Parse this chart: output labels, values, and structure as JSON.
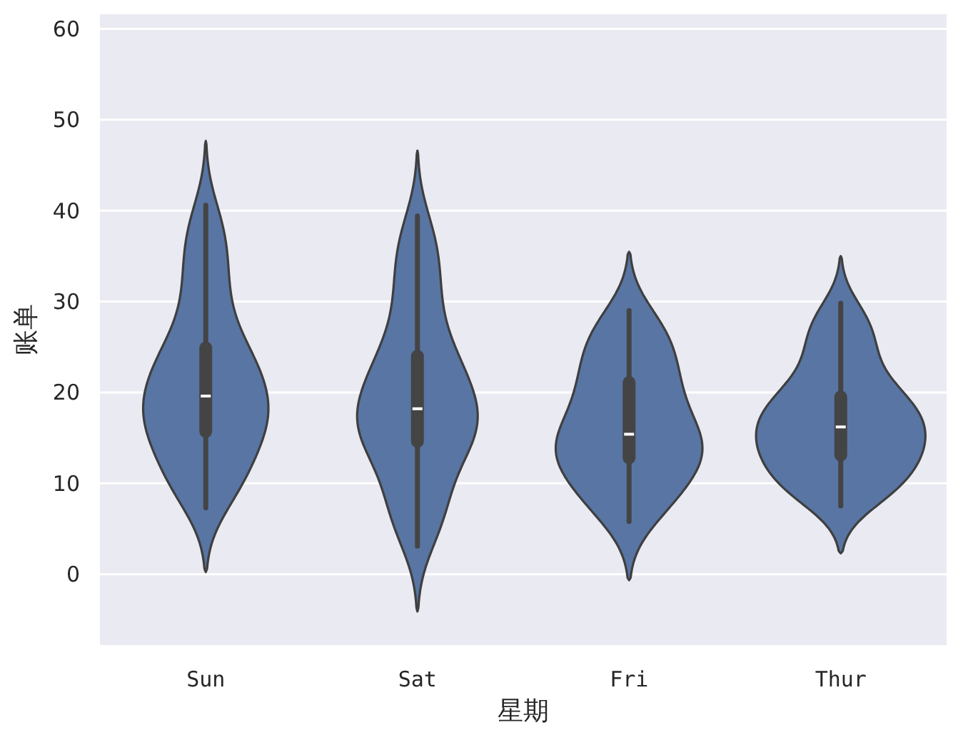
{
  "chart_data": {
    "type": "box",
    "xlabel": "星期",
    "ylabel": "账单",
    "categories": [
      "Sun",
      "Sat",
      "Fri",
      "Thur"
    ],
    "color": "#5875a4",
    "ylim": [
      -7.8,
      61.6
    ],
    "yticks": [
      0,
      10,
      20,
      30,
      40,
      50,
      60
    ],
    "grid": "y",
    "series": [
      {
        "type": "box",
        "color": "#444444",
        "boxes": [
          {
            "low": 7.3,
            "q1": 15.0,
            "median": 19.6,
            "q3": 25.6,
            "high": 40.6
          },
          {
            "low": 3.1,
            "q1": 13.9,
            "median": 18.2,
            "q3": 24.7,
            "high": 39.4
          },
          {
            "low": 5.8,
            "q1": 12.1,
            "median": 15.4,
            "q3": 21.8,
            "high": 29.0
          },
          {
            "low": 7.5,
            "q1": 12.4,
            "median": 16.2,
            "q3": 20.2,
            "high": 29.8
          }
        ]
      }
    ]
  }
}
